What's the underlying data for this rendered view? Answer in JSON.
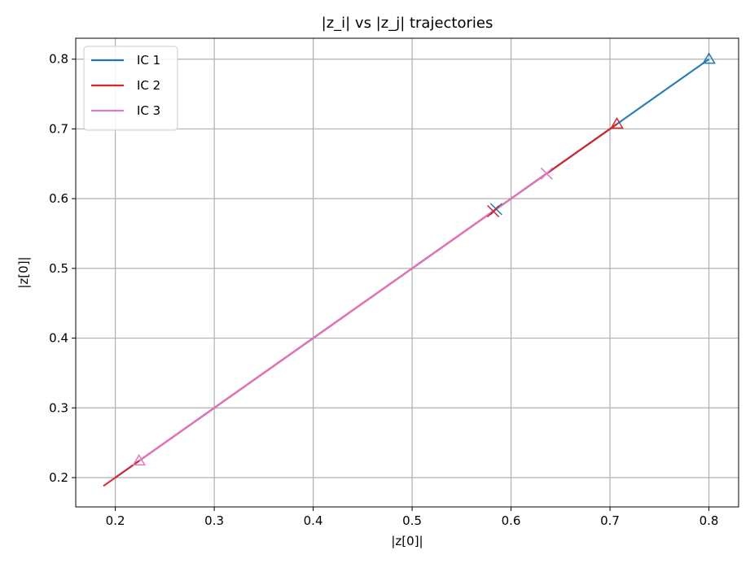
{
  "chart_data": {
    "type": "line",
    "title": "|z_i| vs |z_j| trajectories",
    "xlabel": "|z[0]|",
    "ylabel": "|z[0]|",
    "xlim": [
      0.16,
      0.83
    ],
    "ylim": [
      0.158,
      0.83
    ],
    "xticks": [
      0.2,
      0.3,
      0.4,
      0.5,
      0.6,
      0.7,
      0.8
    ],
    "yticks": [
      0.2,
      0.3,
      0.4,
      0.5,
      0.6,
      0.7,
      0.8
    ],
    "grid": true,
    "legend_position": "top-left",
    "series": [
      {
        "name": "IC 1",
        "color": "#1f77b4",
        "x": [
          0.8,
          0.2
        ],
        "y": [
          0.8,
          0.2
        ],
        "start": [
          0.8,
          0.8
        ],
        "end": [
          0.585,
          0.585
        ]
      },
      {
        "name": "IC 2",
        "color": "#d62728",
        "x": [
          0.707,
          0.188
        ],
        "y": [
          0.707,
          0.188
        ],
        "start": [
          0.707,
          0.707
        ],
        "end": [
          0.582,
          0.582
        ]
      },
      {
        "name": "IC 3",
        "color": "#e377c2",
        "x": [
          0.636,
          0.224
        ],
        "y": [
          0.636,
          0.224
        ],
        "start": [
          0.224,
          0.224
        ],
        "end": [
          0.636,
          0.636
        ]
      }
    ]
  }
}
